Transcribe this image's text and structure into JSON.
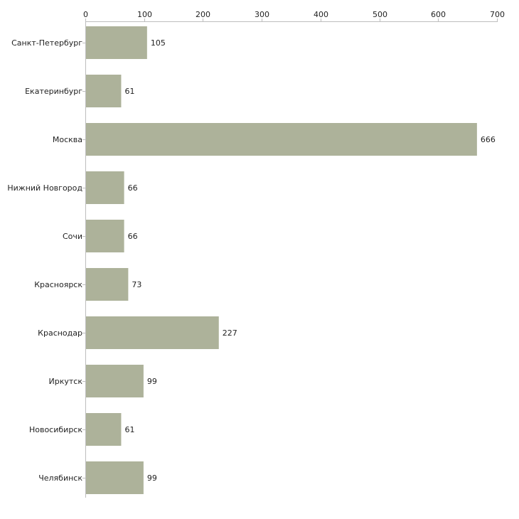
{
  "chart_data": {
    "type": "bar",
    "orientation": "horizontal",
    "title": "",
    "xlabel": "",
    "ylabel": "",
    "xlim": [
      0,
      700
    ],
    "ticks": [
      0,
      100,
      200,
      300,
      400,
      500,
      600,
      700
    ],
    "tick_labels": [
      "0",
      "100",
      "200",
      "300",
      "400",
      "500",
      "600",
      "700"
    ],
    "grid": false,
    "axis_position": "top",
    "categories": [
      "Санкт-Петербург",
      "Екатеринбург",
      "Москва",
      "Нижний Новгород",
      "Сочи",
      "Красноярск",
      "Краснодар",
      "Иркутск",
      "Новосибирск",
      "Челябинск"
    ],
    "values": [
      105,
      61,
      666,
      66,
      66,
      73,
      227,
      99,
      61,
      99
    ],
    "value_labels": [
      "105",
      "61",
      "666",
      "66",
      "66",
      "73",
      "227",
      "99",
      "61",
      "99"
    ],
    "bar_color": "#adb29a",
    "axis_color": "#bdbdbd",
    "text_color": "#222222"
  }
}
